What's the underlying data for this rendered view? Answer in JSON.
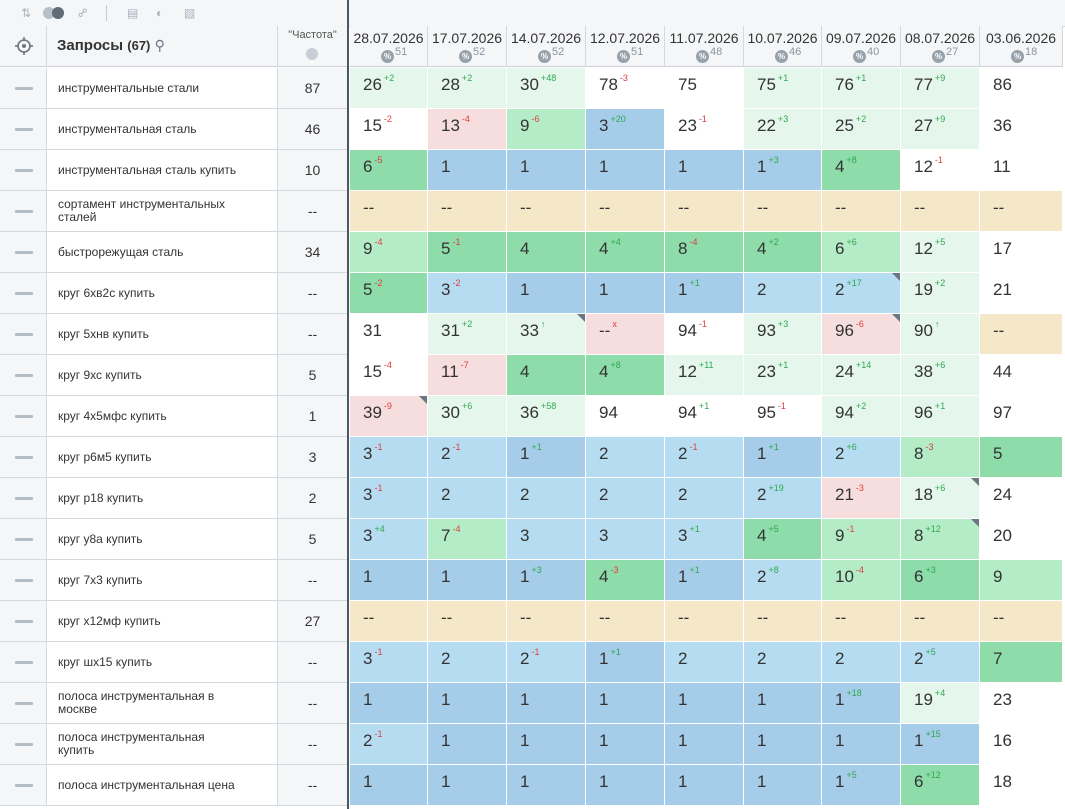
{
  "toolbar": {
    "sort_icon": "sort-arrows-icon",
    "toggle_icon": "toggle-switch-icon",
    "link_icon": "link-icon",
    "table_icon": "table-icon",
    "contrast_icon": "contrast-icon",
    "export_icon": "image-export-icon"
  },
  "header": {
    "target_icon": "crosshair-icon",
    "queries_label": "Запросы",
    "queries_count": "(67)",
    "search_icon": "search-icon",
    "frequency_label": "\"Частота\"",
    "globe_icon": "globe-icon"
  },
  "dates": [
    {
      "date": "28.07.2026",
      "pct_label": "%",
      "pct": "51"
    },
    {
      "date": "17.07.2026",
      "pct_label": "%",
      "pct": "52"
    },
    {
      "date": "14.07.2026",
      "pct_label": "%",
      "pct": "52"
    },
    {
      "date": "12.07.2026",
      "pct_label": "%",
      "pct": "51"
    },
    {
      "date": "11.07.2026",
      "pct_label": "%",
      "pct": "48"
    },
    {
      "date": "10.07.2026",
      "pct_label": "%",
      "pct": "46"
    },
    {
      "date": "09.07.2026",
      "pct_label": "%",
      "pct": "40"
    },
    {
      "date": "08.07.2026",
      "pct_label": "%",
      "pct": "27"
    },
    {
      "date": "03.06.2026",
      "pct_label": "%",
      "pct": "18"
    }
  ],
  "colors": {
    "top3": "#a5cdea",
    "top5": "#b6dcf1",
    "top10": "#8ddcaa",
    "top20": "#b4ecc8",
    "top30": "#e5f7ec",
    "worse": "#f7dede",
    "out": "#ffffff",
    "na": "#f5e8c8",
    "up": "#2ea84e",
    "down": "#e03c3c"
  },
  "rows": [
    {
      "query": "инструментальные стали",
      "freq": "87",
      "cells": [
        {
          "v": "26",
          "d": "2",
          "dir": "up",
          "bg": "top30"
        },
        {
          "v": "28",
          "d": "2",
          "dir": "up",
          "bg": "top30"
        },
        {
          "v": "30",
          "d": "48",
          "dir": "up",
          "bg": "top30"
        },
        {
          "v": "78",
          "d": "3",
          "dir": "down",
          "bg": "out"
        },
        {
          "v": "75",
          "bg": "out"
        },
        {
          "v": "75",
          "d": "1",
          "dir": "up",
          "bg": "top30"
        },
        {
          "v": "76",
          "d": "1",
          "dir": "up",
          "bg": "top30"
        },
        {
          "v": "77",
          "d": "9",
          "dir": "up",
          "bg": "top30"
        },
        {
          "v": "86",
          "bg": "out"
        }
      ]
    },
    {
      "query": "инструментальная сталь",
      "freq": "46",
      "cells": [
        {
          "v": "15",
          "d": "2",
          "dir": "down",
          "bg": "out"
        },
        {
          "v": "13",
          "d": "4",
          "dir": "down",
          "bg": "worse"
        },
        {
          "v": "9",
          "d": "6",
          "dir": "down",
          "bg": "top20"
        },
        {
          "v": "3",
          "d": "20",
          "dir": "up",
          "bg": "top3"
        },
        {
          "v": "23",
          "d": "1",
          "dir": "down",
          "bg": "out"
        },
        {
          "v": "22",
          "d": "3",
          "dir": "up",
          "bg": "top30"
        },
        {
          "v": "25",
          "d": "2",
          "dir": "up",
          "bg": "top30"
        },
        {
          "v": "27",
          "d": "9",
          "dir": "up",
          "bg": "top30"
        },
        {
          "v": "36",
          "bg": "out"
        }
      ]
    },
    {
      "query": "инструментальная сталь купить",
      "freq": "10",
      "cells": [
        {
          "v": "6",
          "d": "5",
          "dir": "down",
          "bg": "top10"
        },
        {
          "v": "1",
          "bg": "top3"
        },
        {
          "v": "1",
          "bg": "top3"
        },
        {
          "v": "1",
          "bg": "top3"
        },
        {
          "v": "1",
          "bg": "top3"
        },
        {
          "v": "1",
          "d": "3",
          "dir": "up",
          "bg": "top3"
        },
        {
          "v": "4",
          "d": "8",
          "dir": "up",
          "bg": "top10"
        },
        {
          "v": "12",
          "d": "1",
          "dir": "down",
          "bg": "out"
        },
        {
          "v": "11",
          "bg": "out"
        }
      ]
    },
    {
      "query": "сортамент инструментальных сталей",
      "freq": "--",
      "cells": [
        {
          "v": "--",
          "bg": "na"
        },
        {
          "v": "--",
          "bg": "na"
        },
        {
          "v": "--",
          "bg": "na"
        },
        {
          "v": "--",
          "bg": "na"
        },
        {
          "v": "--",
          "bg": "na"
        },
        {
          "v": "--",
          "bg": "na"
        },
        {
          "v": "--",
          "bg": "na"
        },
        {
          "v": "--",
          "bg": "na"
        },
        {
          "v": "--",
          "bg": "na"
        }
      ]
    },
    {
      "query": "быстрорежущая сталь",
      "freq": "34",
      "cells": [
        {
          "v": "9",
          "d": "4",
          "dir": "down",
          "bg": "top20"
        },
        {
          "v": "5",
          "d": "1",
          "dir": "down",
          "bg": "top10"
        },
        {
          "v": "4",
          "bg": "top10"
        },
        {
          "v": "4",
          "d": "4",
          "dir": "up",
          "bg": "top10"
        },
        {
          "v": "8",
          "d": "4",
          "dir": "down",
          "bg": "top10"
        },
        {
          "v": "4",
          "d": "2",
          "dir": "up",
          "bg": "top10"
        },
        {
          "v": "6",
          "d": "6",
          "dir": "up",
          "bg": "top20"
        },
        {
          "v": "12",
          "d": "5",
          "dir": "up",
          "bg": "top30"
        },
        {
          "v": "17",
          "bg": "out"
        }
      ]
    },
    {
      "query": "круг 6хв2с купить",
      "freq": "--",
      "cells": [
        {
          "v": "5",
          "d": "2",
          "dir": "down",
          "bg": "top10"
        },
        {
          "v": "3",
          "d": "2",
          "dir": "down",
          "bg": "top5"
        },
        {
          "v": "1",
          "bg": "top3"
        },
        {
          "v": "1",
          "bg": "top3"
        },
        {
          "v": "1",
          "d": "1",
          "dir": "up",
          "bg": "top3"
        },
        {
          "v": "2",
          "bg": "top5"
        },
        {
          "v": "2",
          "d": "17",
          "dir": "up",
          "bg": "top5",
          "corner": true
        },
        {
          "v": "19",
          "d": "2",
          "dir": "up",
          "bg": "top30"
        },
        {
          "v": "21",
          "bg": "out"
        }
      ]
    },
    {
      "query": "круг 5хнв купить",
      "freq": "--",
      "cells": [
        {
          "v": "31",
          "bg": "out"
        },
        {
          "v": "31",
          "d": "2",
          "dir": "up",
          "bg": "top30"
        },
        {
          "v": "33",
          "d": "↑",
          "dir": "up",
          "bg": "top30",
          "corner": true
        },
        {
          "v": "--",
          "d": "x",
          "dir": "down",
          "bg": "worse"
        },
        {
          "v": "94",
          "d": "1",
          "dir": "down",
          "bg": "out"
        },
        {
          "v": "93",
          "d": "3",
          "dir": "up",
          "bg": "top30"
        },
        {
          "v": "96",
          "d": "6",
          "dir": "down",
          "bg": "worse",
          "corner": true
        },
        {
          "v": "90",
          "d": "↑",
          "dir": "up",
          "bg": "top30"
        },
        {
          "v": "--",
          "bg": "na"
        }
      ]
    },
    {
      "query": "круг 9хс купить",
      "freq": "5",
      "cells": [
        {
          "v": "15",
          "d": "4",
          "dir": "down",
          "bg": "out"
        },
        {
          "v": "11",
          "d": "7",
          "dir": "down",
          "bg": "worse"
        },
        {
          "v": "4",
          "bg": "top10"
        },
        {
          "v": "4",
          "d": "8",
          "dir": "up",
          "bg": "top10"
        },
        {
          "v": "12",
          "d": "11",
          "dir": "up",
          "bg": "top30"
        },
        {
          "v": "23",
          "d": "1",
          "dir": "up",
          "bg": "top30"
        },
        {
          "v": "24",
          "d": "14",
          "dir": "up",
          "bg": "top30"
        },
        {
          "v": "38",
          "d": "6",
          "dir": "up",
          "bg": "top30"
        },
        {
          "v": "44",
          "bg": "out"
        }
      ]
    },
    {
      "query": "круг 4х5мфс купить",
      "freq": "1",
      "cells": [
        {
          "v": "39",
          "d": "9",
          "dir": "down",
          "bg": "worse",
          "corner": true
        },
        {
          "v": "30",
          "d": "6",
          "dir": "up",
          "bg": "top30"
        },
        {
          "v": "36",
          "d": "58",
          "dir": "up",
          "bg": "top30"
        },
        {
          "v": "94",
          "bg": "out"
        },
        {
          "v": "94",
          "d": "1",
          "dir": "up",
          "bg": "out"
        },
        {
          "v": "95",
          "d": "1",
          "dir": "down",
          "bg": "out"
        },
        {
          "v": "94",
          "d": "2",
          "dir": "up",
          "bg": "top30"
        },
        {
          "v": "96",
          "d": "1",
          "dir": "up",
          "bg": "top30"
        },
        {
          "v": "97",
          "bg": "out"
        }
      ]
    },
    {
      "query": "круг р6м5 купить",
      "freq": "3",
      "cells": [
        {
          "v": "3",
          "d": "1",
          "dir": "down",
          "bg": "top5"
        },
        {
          "v": "2",
          "d": "1",
          "dir": "down",
          "bg": "top5"
        },
        {
          "v": "1",
          "d": "1",
          "dir": "up",
          "bg": "top3"
        },
        {
          "v": "2",
          "bg": "top5"
        },
        {
          "v": "2",
          "d": "1",
          "dir": "down",
          "bg": "top5"
        },
        {
          "v": "1",
          "d": "1",
          "dir": "up",
          "bg": "top3"
        },
        {
          "v": "2",
          "d": "6",
          "dir": "up",
          "bg": "top5"
        },
        {
          "v": "8",
          "d": "3",
          "dir": "down",
          "bg": "top20"
        },
        {
          "v": "5",
          "bg": "top10"
        }
      ]
    },
    {
      "query": "круг р18 купить",
      "freq": "2",
      "cells": [
        {
          "v": "3",
          "d": "1",
          "dir": "down",
          "bg": "top5"
        },
        {
          "v": "2",
          "bg": "top5"
        },
        {
          "v": "2",
          "bg": "top5"
        },
        {
          "v": "2",
          "bg": "top5"
        },
        {
          "v": "2",
          "bg": "top5"
        },
        {
          "v": "2",
          "d": "19",
          "dir": "up",
          "bg": "top5"
        },
        {
          "v": "21",
          "d": "3",
          "dir": "down",
          "bg": "worse"
        },
        {
          "v": "18",
          "d": "6",
          "dir": "up",
          "bg": "top30",
          "corner": true
        },
        {
          "v": "24",
          "bg": "out"
        }
      ]
    },
    {
      "query": "круг у8а купить",
      "freq": "5",
      "cells": [
        {
          "v": "3",
          "d": "4",
          "dir": "up",
          "bg": "top5"
        },
        {
          "v": "7",
          "d": "4",
          "dir": "down",
          "bg": "top20"
        },
        {
          "v": "3",
          "bg": "top5"
        },
        {
          "v": "3",
          "bg": "top5"
        },
        {
          "v": "3",
          "d": "1",
          "dir": "up",
          "bg": "top5"
        },
        {
          "v": "4",
          "d": "5",
          "dir": "up",
          "bg": "top10"
        },
        {
          "v": "9",
          "d": "1",
          "dir": "down",
          "bg": "top20"
        },
        {
          "v": "8",
          "d": "12",
          "dir": "up",
          "bg": "top20",
          "corner": true
        },
        {
          "v": "20",
          "bg": "out"
        }
      ]
    },
    {
      "query": "круг 7х3 купить",
      "freq": "--",
      "cells": [
        {
          "v": "1",
          "bg": "top3"
        },
        {
          "v": "1",
          "bg": "top3"
        },
        {
          "v": "1",
          "d": "3",
          "dir": "up",
          "bg": "top3"
        },
        {
          "v": "4",
          "d": "3",
          "dir": "down",
          "bg": "top10"
        },
        {
          "v": "1",
          "d": "1",
          "dir": "up",
          "bg": "top3"
        },
        {
          "v": "2",
          "d": "8",
          "dir": "up",
          "bg": "top5"
        },
        {
          "v": "10",
          "d": "4",
          "dir": "down",
          "bg": "top20"
        },
        {
          "v": "6",
          "d": "3",
          "dir": "up",
          "bg": "top10"
        },
        {
          "v": "9",
          "bg": "top20"
        }
      ]
    },
    {
      "query": "круг х12мф купить",
      "freq": "27",
      "cells": [
        {
          "v": "--",
          "bg": "na"
        },
        {
          "v": "--",
          "bg": "na"
        },
        {
          "v": "--",
          "bg": "na"
        },
        {
          "v": "--",
          "bg": "na"
        },
        {
          "v": "--",
          "bg": "na"
        },
        {
          "v": "--",
          "bg": "na"
        },
        {
          "v": "--",
          "bg": "na"
        },
        {
          "v": "--",
          "bg": "na"
        },
        {
          "v": "--",
          "bg": "na"
        }
      ]
    },
    {
      "query": "круг шх15 купить",
      "freq": "--",
      "cells": [
        {
          "v": "3",
          "d": "1",
          "dir": "down",
          "bg": "top5"
        },
        {
          "v": "2",
          "bg": "top5"
        },
        {
          "v": "2",
          "d": "1",
          "dir": "down",
          "bg": "top5"
        },
        {
          "v": "1",
          "d": "1",
          "dir": "up",
          "bg": "top3"
        },
        {
          "v": "2",
          "bg": "top5"
        },
        {
          "v": "2",
          "bg": "top5"
        },
        {
          "v": "2",
          "bg": "top5"
        },
        {
          "v": "2",
          "d": "5",
          "dir": "up",
          "bg": "top5"
        },
        {
          "v": "7",
          "bg": "top10"
        }
      ]
    },
    {
      "query": "полоса инструментальная в москве",
      "freq": "--",
      "cells": [
        {
          "v": "1",
          "bg": "top3"
        },
        {
          "v": "1",
          "bg": "top3"
        },
        {
          "v": "1",
          "bg": "top3"
        },
        {
          "v": "1",
          "bg": "top3"
        },
        {
          "v": "1",
          "bg": "top3"
        },
        {
          "v": "1",
          "bg": "top3"
        },
        {
          "v": "1",
          "d": "18",
          "dir": "up",
          "bg": "top3"
        },
        {
          "v": "19",
          "d": "4",
          "dir": "up",
          "bg": "top30"
        },
        {
          "v": "23",
          "bg": "out"
        }
      ]
    },
    {
      "query": "полоса инструментальная купить",
      "freq": "--",
      "cells": [
        {
          "v": "2",
          "d": "1",
          "dir": "down",
          "bg": "top5"
        },
        {
          "v": "1",
          "bg": "top3"
        },
        {
          "v": "1",
          "bg": "top3"
        },
        {
          "v": "1",
          "bg": "top3"
        },
        {
          "v": "1",
          "bg": "top3"
        },
        {
          "v": "1",
          "bg": "top3"
        },
        {
          "v": "1",
          "bg": "top3"
        },
        {
          "v": "1",
          "d": "15",
          "dir": "up",
          "bg": "top3"
        },
        {
          "v": "16",
          "bg": "out"
        }
      ]
    },
    {
      "query": "полоса инструментальная цена",
      "freq": "--",
      "cells": [
        {
          "v": "1",
          "bg": "top3"
        },
        {
          "v": "1",
          "bg": "top3"
        },
        {
          "v": "1",
          "bg": "top3"
        },
        {
          "v": "1",
          "bg": "top3"
        },
        {
          "v": "1",
          "bg": "top3"
        },
        {
          "v": "1",
          "bg": "top3"
        },
        {
          "v": "1",
          "d": "5",
          "dir": "up",
          "bg": "top3"
        },
        {
          "v": "6",
          "d": "12",
          "dir": "up",
          "bg": "top10"
        },
        {
          "v": "18",
          "bg": "out"
        }
      ]
    }
  ]
}
